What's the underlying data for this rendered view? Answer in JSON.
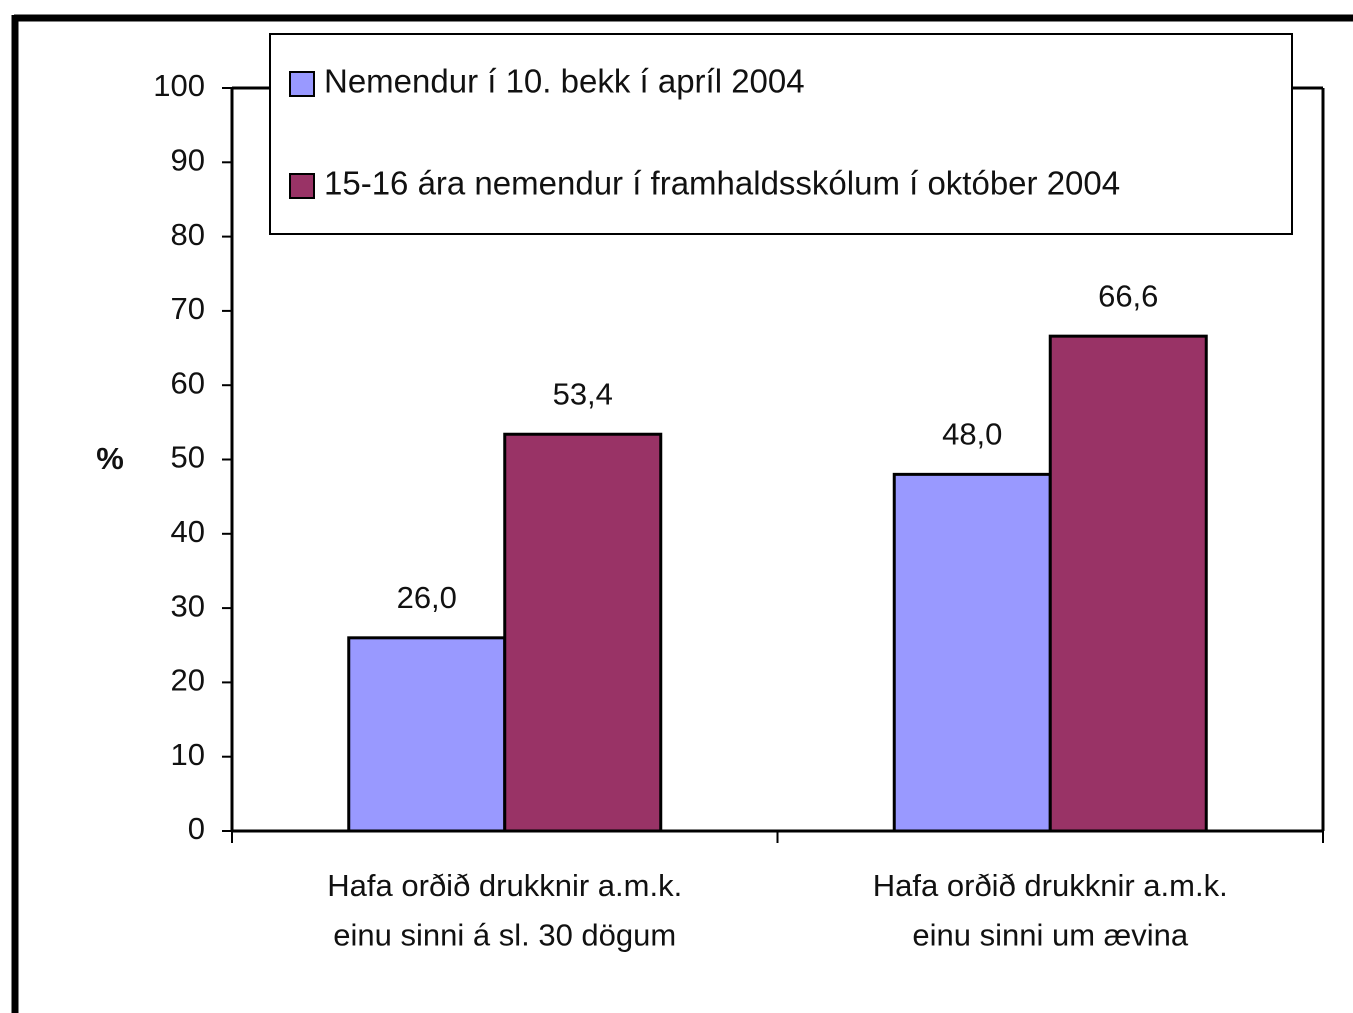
{
  "chart_data": {
    "type": "bar",
    "y_label": "%",
    "categories": [
      "Hafa orðið drukknir a.m.k.\neinu sinni á sl. 30 dögum",
      "Hafa orðið drukknir a.m.k.\neinu sinni um ævina"
    ],
    "series": [
      {
        "name": "Nemendur í 10. bekk í apríl 2004",
        "color": "#9999ff",
        "values": [
          26.0,
          48.0
        ],
        "value_labels": [
          "26,0",
          "48,0"
        ]
      },
      {
        "name": "15-16 ára nemendur í framhaldsskólum í október 2004",
        "color": "#993366",
        "values": [
          53.4,
          66.6
        ],
        "value_labels": [
          "53,4",
          "66,6"
        ]
      }
    ],
    "ylim": [
      0,
      100
    ],
    "yticks": [
      0,
      10,
      20,
      30,
      40,
      50,
      60,
      70,
      80,
      90,
      100
    ],
    "grid": false,
    "legend": "top"
  }
}
